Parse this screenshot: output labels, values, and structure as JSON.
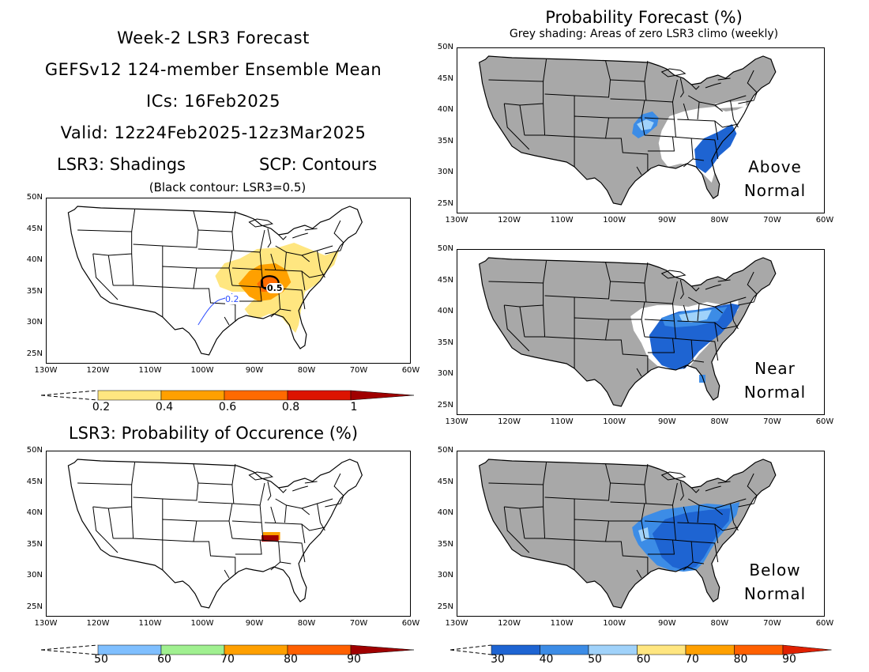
{
  "left_title": {
    "line1": "Week-2 LSR3 Forecast",
    "line2": "GEFSv12 124-member Ensemble Mean",
    "line3": "ICs: 16Feb2025",
    "line4": "Valid: 12z24Feb2025-12z3Mar2025",
    "shadings": "LSR3: Shadings",
    "contours": "SCP: Contours",
    "black_note": "(Black contour: LSR3=0.5)"
  },
  "right_title": {
    "main": "Probability Forecast (%)",
    "sub": "Grey shading: Areas of zero LSR3 climo (weekly)"
  },
  "prob_title": "LSR3: Probability of Occurence (%)",
  "axes": {
    "lat_labels": [
      "50N",
      "45N",
      "40N",
      "35N",
      "30N",
      "25N"
    ],
    "lon_labels": [
      "130W",
      "120W",
      "110W",
      "100W",
      "90W",
      "80W",
      "70W",
      "60W"
    ]
  },
  "contours": {
    "label_05": "0.5",
    "label_02": "0.2"
  },
  "panel_labels": {
    "above": [
      "Above",
      "Normal"
    ],
    "near": [
      "Near",
      "Normal"
    ],
    "below": [
      "Below",
      "Normal"
    ]
  },
  "colorbars": {
    "lsr3": {
      "labels": [
        "0.2",
        "0.4",
        "0.6",
        "0.8",
        "1"
      ],
      "colors": [
        "#ffe680",
        "#ffa000",
        "#ff6a00",
        "#dc1400",
        "#a00000"
      ]
    },
    "prob": {
      "labels": [
        "50",
        "60",
        "70",
        "80",
        "90"
      ],
      "colors": [
        "#7fbfff",
        "#a0f090",
        "#ffa000",
        "#ff6000",
        "#a00000"
      ]
    },
    "forecast": {
      "labels": [
        "30",
        "40",
        "50",
        "60",
        "70",
        "80",
        "90"
      ],
      "colors": [
        "#1e64d2",
        "#3c8ce6",
        "#a0d2fa",
        "#ffe680",
        "#ffa000",
        "#ff6000",
        "#e02000"
      ]
    }
  },
  "colors": {
    "grey": "#a8a8a8",
    "blue_dark": "#1e64d2",
    "blue_mid": "#3c8ce6",
    "blue_light": "#a0d2fa"
  }
}
